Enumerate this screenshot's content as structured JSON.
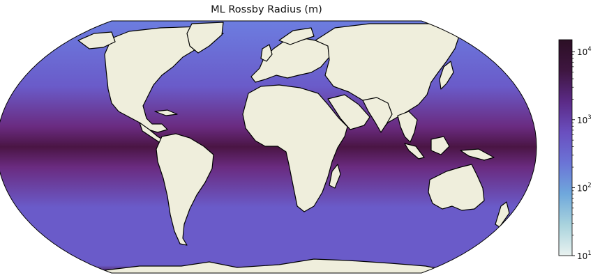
{
  "title": "ML Rossby Radius (m)",
  "colorbar": {
    "scale": "log",
    "range": [
      10,
      15000
    ],
    "ticks": [
      {
        "value": 10,
        "base": "10",
        "exp": "1"
      },
      {
        "value": 100,
        "base": "10",
        "exp": "2"
      },
      {
        "value": 1000,
        "base": "10",
        "exp": "3"
      },
      {
        "value": 10000,
        "base": "10",
        "exp": "4"
      }
    ],
    "colormap": [
      "#e9f2f0",
      "#a9d3dd",
      "#6fa8dc",
      "#6b74d6",
      "#6a4fbf",
      "#5b2a86",
      "#3e1640",
      "#2c0f25"
    ]
  },
  "map": {
    "projection": "Robinson",
    "ocean_equator_color": "#4a1544",
    "ocean_tropics_color": "#6a2b80",
    "ocean_midlat_color": "#6a5bc9",
    "ocean_highlat_color": "#6c7de0",
    "land_color": "#efeedc",
    "coastline_color": "#000000"
  }
}
